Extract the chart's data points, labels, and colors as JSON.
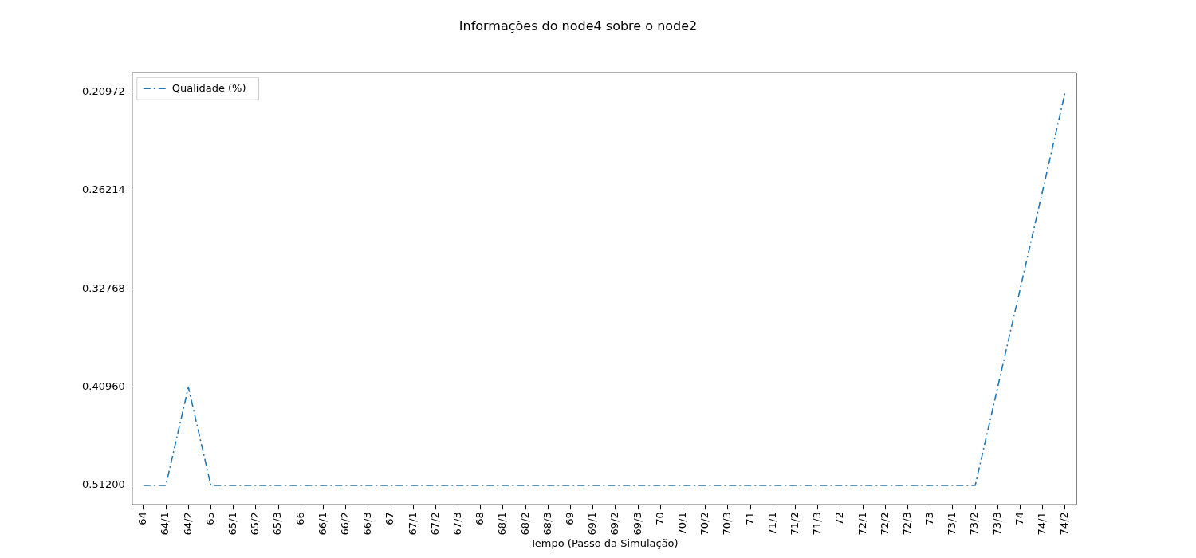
{
  "chart_data": {
    "type": "line",
    "title": "Informações do node4 sobre o node2",
    "xlabel": "Tempo (Passo da Simulação)",
    "categories": [
      "64",
      "64/1",
      "64/2",
      "65",
      "65/1",
      "65/2",
      "65/3",
      "66",
      "66/1",
      "66/2",
      "66/3",
      "67",
      "67/1",
      "67/2",
      "67/3",
      "68",
      "68/1",
      "68/2",
      "68/3",
      "69",
      "69/1",
      "69/2",
      "69/3",
      "70",
      "70/1",
      "70/2",
      "70/3",
      "71",
      "71/1",
      "71/2",
      "71/3",
      "72",
      "72/1",
      "72/2",
      "72/3",
      "73",
      "73/1",
      "73/2",
      "73/3",
      "74",
      "74/1",
      "74/2"
    ],
    "series": [
      {
        "name": "Qualidade (%)",
        "color": "#1f77b4",
        "values": [
          0.512,
          0.512,
          0.4096,
          0.512,
          0.512,
          0.512,
          0.512,
          0.512,
          0.512,
          0.512,
          0.512,
          0.512,
          0.512,
          0.512,
          0.512,
          0.512,
          0.512,
          0.512,
          0.512,
          0.512,
          0.512,
          0.512,
          0.512,
          0.512,
          0.512,
          0.512,
          0.512,
          0.512,
          0.512,
          0.512,
          0.512,
          0.512,
          0.512,
          0.512,
          0.512,
          0.512,
          0.512,
          0.512,
          0.4096,
          0.32768,
          0.26214,
          0.20972
        ]
      }
    ],
    "log": "y",
    "ylim": [
      0.535,
      0.2006
    ],
    "yticks": [
      {
        "value": 0.512,
        "label": "0.51200"
      },
      {
        "value": 0.4096,
        "label": "0.40960"
      },
      {
        "value": 0.32768,
        "label": "0.32768"
      },
      {
        "value": 0.26214,
        "label": "0.26214"
      },
      {
        "value": 0.20972,
        "label": "0.20972"
      }
    ],
    "grid": false,
    "legend": "top left",
    "marker": "none",
    "line_style": "dashed"
  }
}
